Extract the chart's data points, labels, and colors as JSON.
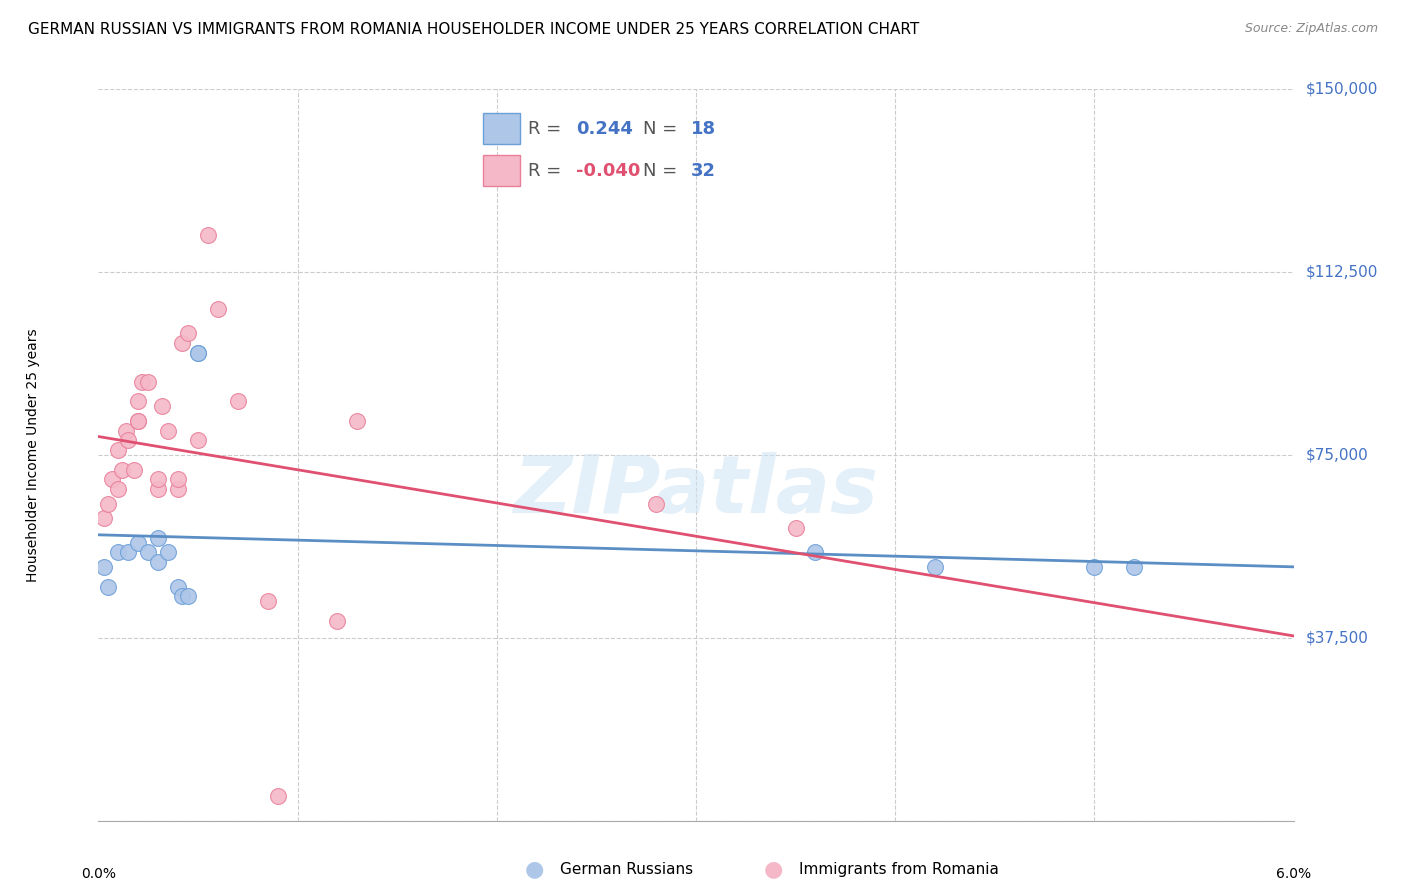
{
  "title": "GERMAN RUSSIAN VS IMMIGRANTS FROM ROMANIA HOUSEHOLDER INCOME UNDER 25 YEARS CORRELATION CHART",
  "source": "Source: ZipAtlas.com",
  "ylabel": "Householder Income Under 25 years",
  "watermark": "ZIPatlas",
  "xlim": [
    0.0,
    0.06
  ],
  "ylim": [
    0,
    150000
  ],
  "yticks": [
    0,
    37500,
    75000,
    112500,
    150000
  ],
  "ytick_labels": [
    "",
    "$37,500",
    "$75,000",
    "$112,500",
    "$150,000"
  ],
  "xtick_positions": [
    0.0,
    0.01,
    0.02,
    0.03,
    0.04,
    0.05,
    0.06
  ],
  "background_color": "#ffffff",
  "grid_color": "#cccccc",
  "series": [
    {
      "name": "German Russians",
      "R": 0.244,
      "N": 18,
      "color": "#aec6e8",
      "edge_color": "#6a9fd8",
      "line_color": "#5b8ec4",
      "x": [
        0.0003,
        0.0005,
        0.001,
        0.0015,
        0.002,
        0.0025,
        0.003,
        0.003,
        0.0035,
        0.004,
        0.0042,
        0.0045,
        0.005,
        0.005,
        0.036,
        0.042,
        0.05,
        0.052
      ],
      "y": [
        52000,
        48000,
        55000,
        55000,
        57000,
        55000,
        58000,
        53000,
        55000,
        48000,
        46000,
        46000,
        96000,
        96000,
        55000,
        52000,
        52000,
        52000
      ]
    },
    {
      "name": "Immigrants from Romania",
      "R": -0.04,
      "N": 32,
      "color": "#f5b8c8",
      "edge_color": "#e8809a",
      "line_color": "#e05070",
      "x": [
        0.0003,
        0.0005,
        0.0007,
        0.001,
        0.001,
        0.0012,
        0.0014,
        0.0015,
        0.0018,
        0.002,
        0.002,
        0.002,
        0.0022,
        0.0025,
        0.003,
        0.003,
        0.0032,
        0.0035,
        0.004,
        0.004,
        0.0042,
        0.0045,
        0.005,
        0.0055,
        0.006,
        0.007,
        0.0085,
        0.009,
        0.012,
        0.013,
        0.028,
        0.035
      ],
      "y": [
        62000,
        65000,
        70000,
        68000,
        76000,
        72000,
        80000,
        78000,
        72000,
        82000,
        86000,
        82000,
        90000,
        90000,
        68000,
        70000,
        85000,
        80000,
        68000,
        70000,
        98000,
        100000,
        78000,
        120000,
        105000,
        86000,
        45000,
        5000,
        41000,
        82000,
        65000,
        60000
      ]
    }
  ],
  "R_color_blue": "#4472c4",
  "R_color_pink": "#e05070",
  "N_color": "#4472c4",
  "legend_R_label_color": "#888888",
  "bottom_legend_items": [
    {
      "label": "German Russians",
      "color": "#aec6e8",
      "edge_color": "#6a9fd8"
    },
    {
      "label": "Immigrants from Romania",
      "color": "#f5b8c8",
      "edge_color": "#e8809a"
    }
  ]
}
